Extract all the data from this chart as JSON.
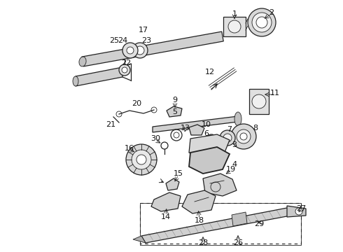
{
  "bg_color": "#ffffff",
  "line_color": "#222222",
  "fig_w": 4.9,
  "fig_h": 3.6,
  "dpi": 100
}
